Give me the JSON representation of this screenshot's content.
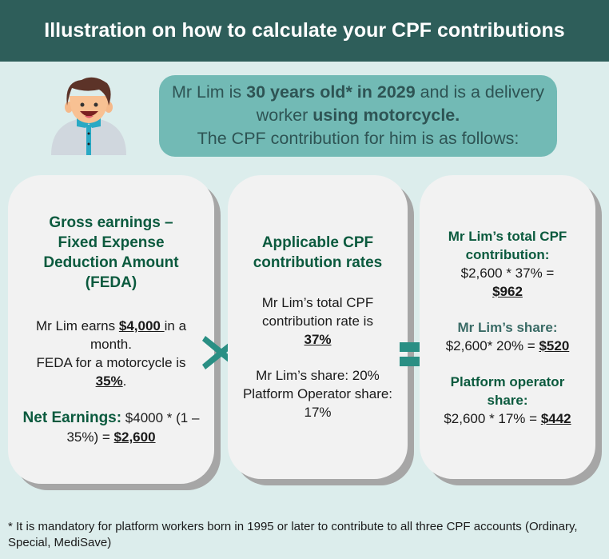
{
  "title": "Illustration on how to calculate your CPF contributions",
  "bubble": {
    "t1": "Mr Lim is ",
    "b1": "30 years old* in 2029",
    "t2": " and is a delivery worker ",
    "b2": "using motorcycle.",
    "t3": "The CPF contribution for him is as follows:"
  },
  "card1": {
    "heading": "Gross earnings – Fixed Expense Deduction Amount (FEDA)",
    "p1a": "Mr Lim earns ",
    "p1b": "$4,000 ",
    "p1c": "in a month.",
    "p2a": "FEDA for a motorcycle is ",
    "p2b": "35%",
    "p2c": ".",
    "net_label": "Net Earnings:",
    "net_a": " $4000 * (1 – 35%) = ",
    "net_b": "$2,600"
  },
  "card2": {
    "heading": "Applicable CPF contribution rates",
    "rate_text": "Mr Lim’s total CPF contribution rate is",
    "rate": "37%",
    "share": "Mr Lim’s share: 20%",
    "platform": "Platform Operator share: 17%"
  },
  "card3": {
    "total_heading": "Mr Lim’s total CPF contribution:",
    "total_calc": "$2,600 * 37% =",
    "total_val": "$962",
    "share_heading": "Mr Lim’s share:",
    "share_calc": "$2,600* 20% = ",
    "share_val": "$520",
    "plat_heading": "Platform operator share:",
    "plat_calc": "$2,600 * 17% = ",
    "plat_val": "$442"
  },
  "footnote": "* It is mandatory for platform workers born in 1995 or later to contribute to all three CPF accounts (Ordinary, Special, MediSave)",
  "icons": {
    "avatar": "man-avatar",
    "multiply": "multiply-icon",
    "equals": "equals-icon"
  },
  "colors": {
    "header": "#2e5e5a",
    "background": "#dcedec",
    "bubble": "#72bab5",
    "accent": "#2a8f84",
    "heading": "#0b5a3e"
  }
}
